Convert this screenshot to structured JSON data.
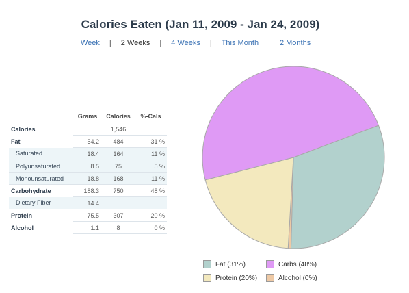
{
  "page": {
    "title": "Calories Eaten (Jan 11, 2009 - Jan 24, 2009)"
  },
  "range_nav": {
    "items": [
      {
        "label": "Week",
        "selected": false
      },
      {
        "label": "2 Weeks",
        "selected": true
      },
      {
        "label": "4 Weeks",
        "selected": false
      },
      {
        "label": "This Month",
        "selected": false
      },
      {
        "label": "2 Months",
        "selected": false
      }
    ],
    "separator": "|"
  },
  "table": {
    "headers": [
      "Grams",
      "Calories",
      "%-Cals"
    ],
    "rows": [
      {
        "label": "Calories",
        "grams": "",
        "calories": "1,546",
        "pct": ""
      },
      {
        "label": "Fat",
        "grams": "54.2",
        "calories": "484",
        "pct": "31 %"
      },
      {
        "label": "Saturated",
        "grams": "18.4",
        "calories": "164",
        "pct": "11 %"
      },
      {
        "label": "Polyunsaturated",
        "grams": "8.5",
        "calories": "75",
        "pct": "5 %"
      },
      {
        "label": "Monounsaturated",
        "grams": "18.8",
        "calories": "168",
        "pct": "11 %"
      },
      {
        "label": "Carbohydrate",
        "grams": "188.3",
        "calories": "750",
        "pct": "48 %"
      },
      {
        "label": "Dietary Fiber",
        "grams": "14.4",
        "calories": "",
        "pct": ""
      },
      {
        "label": "Protein",
        "grams": "75.5",
        "calories": "307",
        "pct": "20 %"
      },
      {
        "label": "Alcohol",
        "grams": "1.1",
        "calories": "8",
        "pct": "0 %"
      }
    ]
  },
  "chart_data": {
    "type": "pie",
    "slices": [
      {
        "label": "Fat",
        "value": 31,
        "color": "#b2d1cd"
      },
      {
        "label": "Carbs",
        "value": 48,
        "color": "#df9af5"
      },
      {
        "label": "Protein",
        "value": 20,
        "color": "#f3e9be"
      },
      {
        "label": "Alcohol",
        "value": 0.5,
        "color": "#eec9a5"
      }
    ],
    "legend": {
      "placement": "bottom",
      "entries": [
        "Fat  (31%)",
        "Carbs  (48%)",
        "Protein  (20%)",
        "Alcohol  (0%)"
      ]
    }
  },
  "colors": {
    "link": "#3b72b4",
    "title": "#2b3a4a",
    "subrow_bg": "#edf5f8"
  }
}
